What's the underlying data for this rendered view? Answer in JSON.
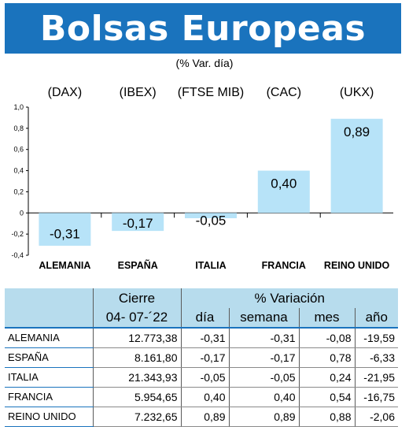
{
  "header": {
    "title": "Bolsas Europeas",
    "subtitle": "(% Var. día)"
  },
  "chart_data": {
    "type": "bar",
    "title": "Bolsas Europeas",
    "subtitle": "(% Var. día)",
    "categories": [
      "ALEMANIA",
      "ESPAÑA",
      "ITALIA",
      "FRANCIA",
      "REINO UNIDO"
    ],
    "indices": [
      "(DAX)",
      "(IBEX)",
      "(FTSE MIB)",
      "(CAC)",
      "(UKX)"
    ],
    "values": [
      -0.31,
      -0.17,
      -0.05,
      0.4,
      0.89
    ],
    "value_labels": [
      "-0,31",
      "-0,17",
      "-0,05",
      "0,40",
      "0,89"
    ],
    "yticks": [
      "1,0",
      "0,8",
      "0,6",
      "0,4",
      "0,2",
      "0",
      "-0,2",
      "-0,4"
    ],
    "ylim": [
      -0.4,
      1.0
    ],
    "bar_color": "#b7e3f8",
    "grid": false
  },
  "table": {
    "group_headers": {
      "close": "Cierre",
      "variation": "% Variación"
    },
    "columns": [
      "04- 07-´22",
      "día",
      "semana",
      "mes",
      "año"
    ],
    "rows": [
      [
        "ALEMANIA",
        "12.773,38",
        "-0,31",
        "-0,31",
        "-0,08",
        "-19,59"
      ],
      [
        "ESPAÑA",
        "8.161,80",
        "-0,17",
        "-0,17",
        "0,78",
        "-6,33"
      ],
      [
        "ITALIA",
        "21.343,93",
        "-0,05",
        "-0,05",
        "0,24",
        "-21,95"
      ],
      [
        "FRANCIA",
        "5.954,65",
        "0,40",
        "0,40",
        "0,54",
        "-16,75"
      ],
      [
        "REINO UNIDO",
        "7.232,65",
        "0,89",
        "0,89",
        "0,88",
        "-2,06"
      ]
    ]
  },
  "colors": {
    "banner": "#1a73bd",
    "table_header": "#b7dced",
    "accent_line": "#1a73bd"
  }
}
